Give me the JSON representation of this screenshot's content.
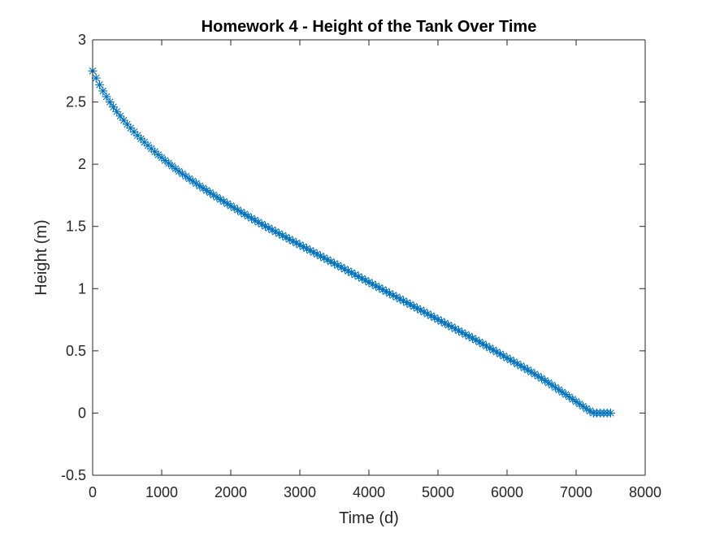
{
  "chart_data": {
    "type": "scatter",
    "title": "Homework 4 - Height of the Tank Over Time",
    "xlabel": "Time (d)",
    "ylabel": "Height (m)",
    "xlim": [
      0,
      8000
    ],
    "ylim": [
      -0.5,
      3
    ],
    "xticks": [
      0,
      1000,
      2000,
      3000,
      4000,
      5000,
      6000,
      7000,
      8000
    ],
    "xtick_labels": [
      "0",
      "1000",
      "2000",
      "3000",
      "4000",
      "5000",
      "6000",
      "7000",
      "8000"
    ],
    "yticks": [
      -0.5,
      0,
      0.5,
      1,
      1.5,
      2,
      2.5,
      3
    ],
    "ytick_labels": [
      "-0.5",
      "0",
      "0.5",
      "1",
      "1.5",
      "2",
      "2.5",
      "3"
    ],
    "grid": false,
    "marker": "asterisk",
    "color": "#0072bd",
    "series": [
      {
        "x": [
          0,
          50,
          100,
          150,
          200,
          250,
          300,
          350,
          400,
          450,
          500,
          550,
          600,
          650,
          700,
          750,
          800,
          850,
          900,
          950,
          1000,
          1050,
          1100,
          1150,
          1200,
          1250,
          1300,
          1350,
          1400,
          1450,
          1500,
          1550,
          1600,
          1650,
          1700,
          1750,
          1800,
          1850,
          1900,
          1950,
          2000,
          2050,
          2100,
          2150,
          2200,
          2250,
          2300,
          2350,
          2400,
          2450,
          2500,
          2550,
          2600,
          2650,
          2700,
          2750,
          2800,
          2850,
          2900,
          2950,
          3000,
          3050,
          3100,
          3150,
          3200,
          3250,
          3300,
          3350,
          3400,
          3450,
          3500,
          3550,
          3600,
          3650,
          3700,
          3750,
          3800,
          3850,
          3900,
          3950,
          4000,
          4050,
          4100,
          4150,
          4200,
          4250,
          4300,
          4350,
          4400,
          4450,
          4500,
          4550,
          4600,
          4650,
          4700,
          4750,
          4800,
          4850,
          4900,
          4950,
          5000,
          5050,
          5100,
          5150,
          5200,
          5250,
          5300,
          5350,
          5400,
          5450,
          5500,
          5550,
          5600,
          5650,
          5700,
          5750,
          5800,
          5850,
          5900,
          5950,
          6000,
          6050,
          6100,
          6150,
          6200,
          6250,
          6300,
          6350,
          6400,
          6450,
          6500,
          6550,
          6600,
          6650,
          6700,
          6750,
          6800,
          6850,
          6900,
          6950,
          7000,
          7050,
          7100,
          7150,
          7200,
          7250,
          7300,
          7350,
          7400,
          7450,
          7500
        ],
        "y": [
          2.75,
          2.693,
          2.639,
          2.589,
          2.543,
          2.5,
          2.46,
          2.423,
          2.387,
          2.353,
          2.321,
          2.29,
          2.26,
          2.231,
          2.204,
          2.177,
          2.151,
          2.125,
          2.1,
          2.076,
          2.053,
          2.03,
          2.008,
          1.986,
          1.964,
          1.943,
          1.923,
          1.903,
          1.883,
          1.864,
          1.845,
          1.826,
          1.807,
          1.789,
          1.771,
          1.753,
          1.735,
          1.717,
          1.7,
          1.683,
          1.666,
          1.649,
          1.632,
          1.615,
          1.599,
          1.582,
          1.566,
          1.55,
          1.534,
          1.518,
          1.502,
          1.487,
          1.472,
          1.457,
          1.442,
          1.427,
          1.412,
          1.397,
          1.382,
          1.367,
          1.352,
          1.337,
          1.322,
          1.307,
          1.292,
          1.277,
          1.262,
          1.247,
          1.232,
          1.217,
          1.202,
          1.187,
          1.172,
          1.157,
          1.142,
          1.127,
          1.112,
          1.097,
          1.082,
          1.067,
          1.052,
          1.037,
          1.022,
          1.007,
          0.992,
          0.977,
          0.962,
          0.947,
          0.932,
          0.917,
          0.902,
          0.887,
          0.872,
          0.857,
          0.842,
          0.827,
          0.812,
          0.797,
          0.782,
          0.767,
          0.752,
          0.737,
          0.722,
          0.707,
          0.692,
          0.677,
          0.662,
          0.647,
          0.632,
          0.617,
          0.602,
          0.587,
          0.571,
          0.555,
          0.539,
          0.523,
          0.507,
          0.491,
          0.475,
          0.459,
          0.443,
          0.427,
          0.411,
          0.395,
          0.379,
          0.363,
          0.347,
          0.33,
          0.313,
          0.296,
          0.279,
          0.261,
          0.243,
          0.225,
          0.206,
          0.187,
          0.168,
          0.149,
          0.13,
          0.111,
          0.092,
          0.073,
          0.054,
          0.035,
          0.017,
          0.0,
          0.0,
          0.0,
          0.0,
          0.0,
          0.0
        ]
      }
    ]
  }
}
